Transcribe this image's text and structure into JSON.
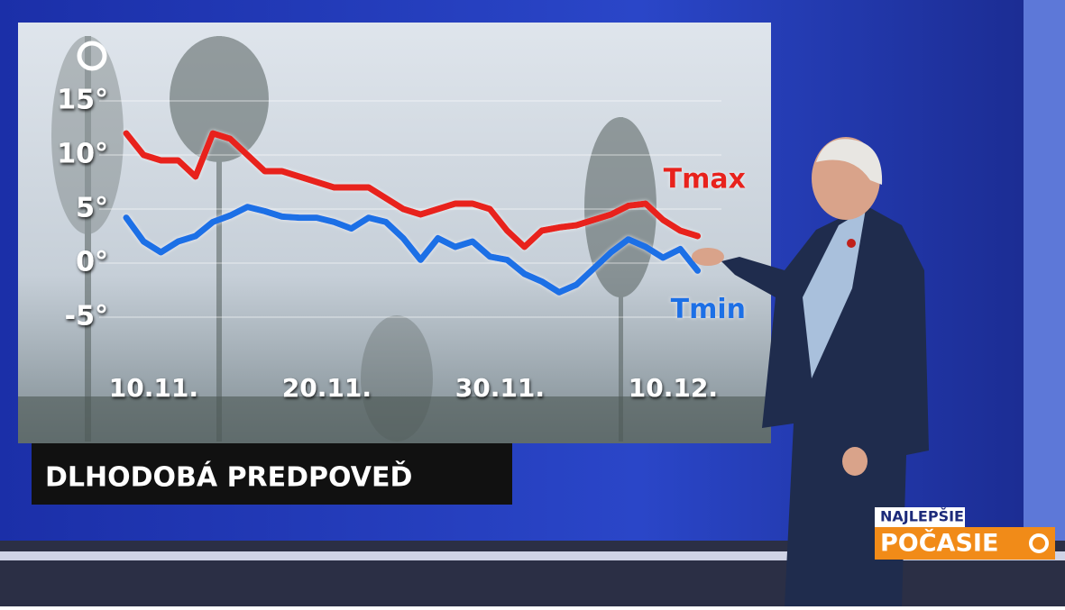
{
  "chart_data": {
    "type": "line",
    "title": "DLHODOBÁ PREDPOVEĎ",
    "categories": [
      null,
      null,
      "10.11.",
      null,
      null,
      null,
      null,
      null,
      null,
      null,
      null,
      null,
      "20.11.",
      null,
      null,
      null,
      null,
      null,
      null,
      null,
      null,
      null,
      "30.11.",
      null,
      null,
      null,
      null,
      null,
      null,
      null,
      null,
      null,
      "10.12.",
      null
    ],
    "series": [
      {
        "name": "Tmax",
        "color": "#e8231c",
        "values": [
          12,
          10,
          9.5,
          9.5,
          8,
          12,
          11.5,
          10,
          8.5,
          8.5,
          8,
          7.5,
          7,
          7,
          7,
          6,
          5,
          4.5,
          5,
          5.5,
          5.5,
          5,
          3,
          1.5,
          3,
          3.3,
          3.5,
          4,
          4.5,
          5.3,
          5.5,
          4,
          3,
          2.5
        ]
      },
      {
        "name": "Tmin",
        "color": "#1f6fe6",
        "values": [
          4.2,
          2,
          1,
          2,
          2.5,
          3.8,
          4.4,
          5.2,
          4.8,
          4.3,
          4.2,
          4.2,
          3.8,
          3.2,
          4.2,
          3.8,
          2.3,
          0.3,
          2.3,
          1.5,
          2,
          0.6,
          0.3,
          -1,
          -1.7,
          -2.7,
          -2,
          -0.5,
          1,
          2.2,
          1.5,
          0.5,
          1.3,
          -0.7
        ]
      }
    ],
    "ylim": [
      -7,
      17
    ],
    "yticks": [
      {
        "value": 15,
        "label": "15°"
      },
      {
        "value": 10,
        "label": "10°"
      },
      {
        "value": 5,
        "label": "5°"
      },
      {
        "value": 0,
        "label": "0°"
      },
      {
        "value": -5,
        "label": "-5°"
      }
    ],
    "grid": true
  },
  "branding": {
    "top": "NAJLEPŠIE",
    "bottom": "POČASIE"
  }
}
